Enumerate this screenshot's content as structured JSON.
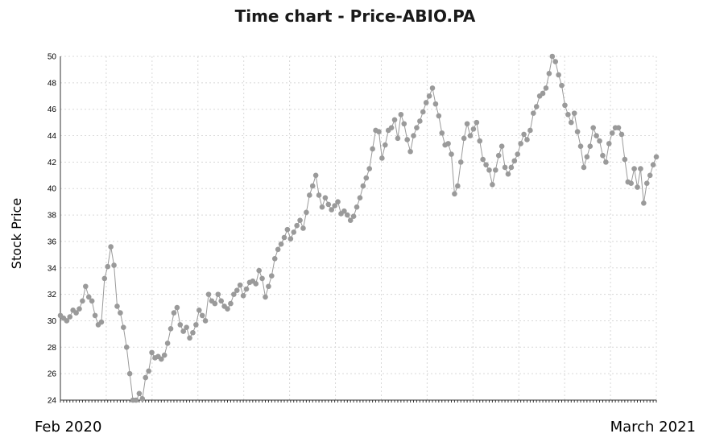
{
  "chart_data": {
    "type": "line",
    "title": "Time chart - Price-ABIO.PA",
    "ylabel": "Stock Price",
    "x_start_label": "Feb 2020",
    "x_end_label": "March 2021",
    "ylim": [
      24,
      50
    ],
    "yticks": [
      24,
      26,
      28,
      30,
      32,
      34,
      36,
      38,
      40,
      42,
      44,
      46,
      48,
      50
    ],
    "grid": true,
    "series": [
      {
        "color": "#9a9a9a",
        "values": [
          30.4,
          30.2,
          30.0,
          30.3,
          30.8,
          30.6,
          30.9,
          31.5,
          32.6,
          31.8,
          31.5,
          30.4,
          29.7,
          29.9,
          33.2,
          34.1,
          35.6,
          34.2,
          31.1,
          30.6,
          29.5,
          28.0,
          26.0,
          24.0,
          23.9,
          24.5,
          24.1,
          25.7,
          26.2,
          27.6,
          27.2,
          27.3,
          27.1,
          27.4,
          28.3,
          29.4,
          30.6,
          31.0,
          29.7,
          29.2,
          29.5,
          28.7,
          29.1,
          29.7,
          30.8,
          30.4,
          30.0,
          32.0,
          31.5,
          31.3,
          32.0,
          31.5,
          31.1,
          30.9,
          31.3,
          32.0,
          32.3,
          32.7,
          31.9,
          32.4,
          32.9,
          33.0,
          32.8,
          33.8,
          33.2,
          31.8,
          32.6,
          33.4,
          34.7,
          35.4,
          35.8,
          36.3,
          36.9,
          36.2,
          36.7,
          37.2,
          37.6,
          37.0,
          38.2,
          39.5,
          40.2,
          41.0,
          39.5,
          38.6,
          39.3,
          38.8,
          38.4,
          38.7,
          39.0,
          38.1,
          38.3,
          38.0,
          37.6,
          37.9,
          38.6,
          39.3,
          40.2,
          40.8,
          41.5,
          43.0,
          44.4,
          44.3,
          42.3,
          43.3,
          44.4,
          44.6,
          45.2,
          43.8,
          45.6,
          44.9,
          43.7,
          42.8,
          44.0,
          44.6,
          45.1,
          45.8,
          46.5,
          47.0,
          47.6,
          46.4,
          45.5,
          44.2,
          43.3,
          43.4,
          42.6,
          39.6,
          40.2,
          42.0,
          43.8,
          44.9,
          44.0,
          44.5,
          45.0,
          43.6,
          42.2,
          41.8,
          41.4,
          40.3,
          41.4,
          42.5,
          43.2,
          41.6,
          41.1,
          41.6,
          42.1,
          42.6,
          43.4,
          44.1,
          43.7,
          44.4,
          45.7,
          46.2,
          47.0,
          47.2,
          47.6,
          48.7,
          50.0,
          49.6,
          48.6,
          47.8,
          46.3,
          45.6,
          45.0,
          45.7,
          44.3,
          43.2,
          41.6,
          42.4,
          43.2,
          44.6,
          44.0,
          43.6,
          42.5,
          42.0,
          43.4,
          44.2,
          44.6,
          44.6,
          44.1,
          42.2,
          40.5,
          40.4,
          41.5,
          40.1,
          41.5,
          38.9,
          40.4,
          41.0,
          41.8,
          42.4
        ]
      }
    ]
  }
}
